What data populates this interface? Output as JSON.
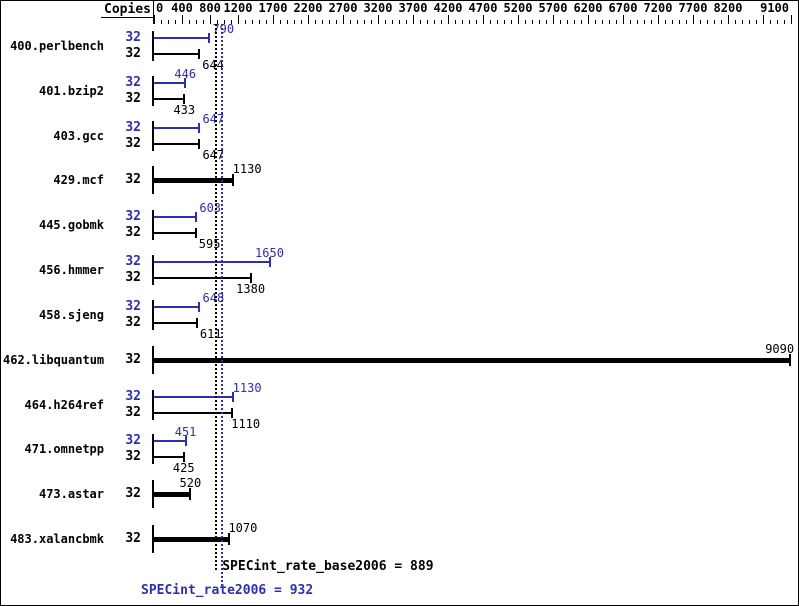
{
  "header": {
    "copies_label": "Copies"
  },
  "chart_data": {
    "type": "bar",
    "orientation": "horizontal",
    "legend_position": "none",
    "grid": false,
    "x_axis": {
      "min": 0,
      "max": 9100,
      "labeled_ticks": [
        0,
        400,
        800,
        1200,
        1700,
        2200,
        2700,
        3200,
        3700,
        4200,
        4700,
        5200,
        5700,
        6200,
        6700,
        7200,
        7700,
        8200,
        9100
      ],
      "unlabeled_major_ticks": [
        8700
      ],
      "minor_tick_step": 100
    },
    "benchmarks": [
      {
        "name": "400.perlbench",
        "copies": 32,
        "peak": 790,
        "base": 644
      },
      {
        "name": "401.bzip2",
        "copies": 32,
        "peak": 446,
        "base": 433
      },
      {
        "name": "403.gcc",
        "copies": 32,
        "peak": 647,
        "base": 647
      },
      {
        "name": "429.mcf",
        "copies": 32,
        "single": 1130
      },
      {
        "name": "445.gobmk",
        "copies": 32,
        "peak": 603,
        "base": 595
      },
      {
        "name": "456.hmmer",
        "copies": 32,
        "peak": 1650,
        "base": 1380
      },
      {
        "name": "458.sjeng",
        "copies": 32,
        "peak": 648,
        "base": 611
      },
      {
        "name": "462.libquantum",
        "copies": 32,
        "single": 9090
      },
      {
        "name": "464.h264ref",
        "copies": 32,
        "peak": 1130,
        "base": 1110
      },
      {
        "name": "471.omnetpp",
        "copies": 32,
        "peak": 451,
        "base": 425
      },
      {
        "name": "473.astar",
        "copies": 32,
        "single": 520
      },
      {
        "name": "483.xalancbmk",
        "copies": 32,
        "single": 1070
      }
    ],
    "summary": {
      "base_label": "SPECint_rate_base2006 = 889",
      "base_value": 889,
      "peak_label": "SPECint_rate2006 = 932",
      "peak_value": 932
    },
    "colors": {
      "peak_blue": "#2e2eb4",
      "base_black": "#000000"
    }
  }
}
